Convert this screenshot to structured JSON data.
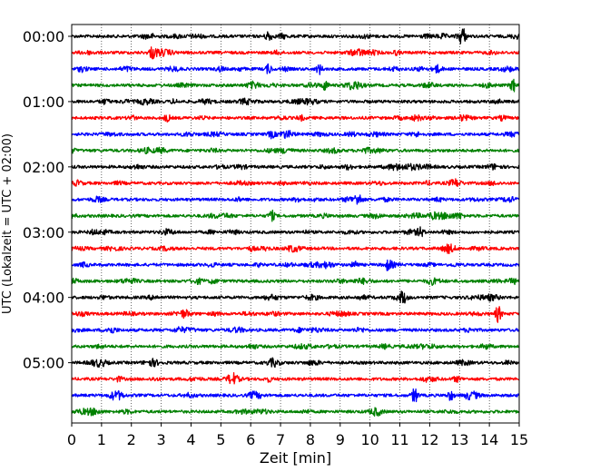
{
  "chart_data": {
    "type": "line",
    "title": "",
    "xlabel": "Zeit  [min]",
    "ylabel": "UTC (Lokalzeit = UTC + 02:00)",
    "xlim": [
      0,
      15
    ],
    "x_ticks": [
      "0",
      "1",
      "2",
      "3",
      "4",
      "5",
      "6",
      "7",
      "8",
      "9",
      "10",
      "11",
      "12",
      "13",
      "14",
      "15"
    ],
    "y_tick_labels": [
      "00:00",
      "01:00",
      "02:00",
      "03:00",
      "04:00",
      "05:00"
    ],
    "trace_interval_min": 15,
    "trace_count": 24,
    "color_cycle": [
      "#000000",
      "#ff0000",
      "#0000ff",
      "#008000"
    ],
    "grid": "vertical dotted at each minute",
    "legend": "none",
    "series": [
      {
        "start": "00:00",
        "color": "#000000"
      },
      {
        "start": "00:15",
        "color": "#ff0000"
      },
      {
        "start": "00:30",
        "color": "#0000ff"
      },
      {
        "start": "00:45",
        "color": "#008000"
      },
      {
        "start": "01:00",
        "color": "#000000"
      },
      {
        "start": "01:15",
        "color": "#ff0000"
      },
      {
        "start": "01:30",
        "color": "#0000ff"
      },
      {
        "start": "01:45",
        "color": "#008000"
      },
      {
        "start": "02:00",
        "color": "#000000"
      },
      {
        "start": "02:15",
        "color": "#ff0000"
      },
      {
        "start": "02:30",
        "color": "#0000ff"
      },
      {
        "start": "02:45",
        "color": "#008000"
      },
      {
        "start": "03:00",
        "color": "#000000"
      },
      {
        "start": "03:15",
        "color": "#ff0000"
      },
      {
        "start": "03:30",
        "color": "#0000ff"
      },
      {
        "start": "03:45",
        "color": "#008000"
      },
      {
        "start": "04:00",
        "color": "#000000"
      },
      {
        "start": "04:15",
        "color": "#ff0000"
      },
      {
        "start": "04:30",
        "color": "#0000ff"
      },
      {
        "start": "04:45",
        "color": "#008000"
      },
      {
        "start": "05:00",
        "color": "#000000"
      },
      {
        "start": "05:15",
        "color": "#ff0000"
      },
      {
        "start": "05:30",
        "color": "#0000ff"
      },
      {
        "start": "05:45",
        "color": "#008000"
      }
    ],
    "events": [
      {
        "trace": 0,
        "t": 6.6,
        "amp": 1.0
      },
      {
        "trace": 0,
        "t": 13.1,
        "amp": 1.0
      },
      {
        "trace": 1,
        "t": 2.7,
        "amp": 0.9
      },
      {
        "trace": 2,
        "t": 6.6,
        "amp": 0.8
      },
      {
        "trace": 2,
        "t": 8.3,
        "amp": 0.8
      },
      {
        "trace": 2,
        "t": 12.2,
        "amp": 0.6
      },
      {
        "trace": 3,
        "t": 8.5,
        "amp": 0.8
      },
      {
        "trace": 3,
        "t": 14.8,
        "amp": 1.1
      },
      {
        "trace": 5,
        "t": 3.2,
        "amp": 0.6
      },
      {
        "trace": 6,
        "t": 6.7,
        "amp": 0.6
      },
      {
        "trace": 10,
        "t": 9.6,
        "amp": 0.7
      },
      {
        "trace": 11,
        "t": 6.7,
        "amp": 0.9
      },
      {
        "trace": 12,
        "t": 11.7,
        "amp": 0.8
      },
      {
        "trace": 14,
        "t": 9.5,
        "amp": 0.7
      },
      {
        "trace": 14,
        "t": 10.6,
        "amp": 0.7
      },
      {
        "trace": 16,
        "t": 11.1,
        "amp": 0.8
      },
      {
        "trace": 17,
        "t": 14.3,
        "amp": 1.4
      },
      {
        "trace": 22,
        "t": 11.5,
        "amp": 1.3
      },
      {
        "trace": 22,
        "t": 12.7,
        "amp": 0.8
      }
    ]
  }
}
